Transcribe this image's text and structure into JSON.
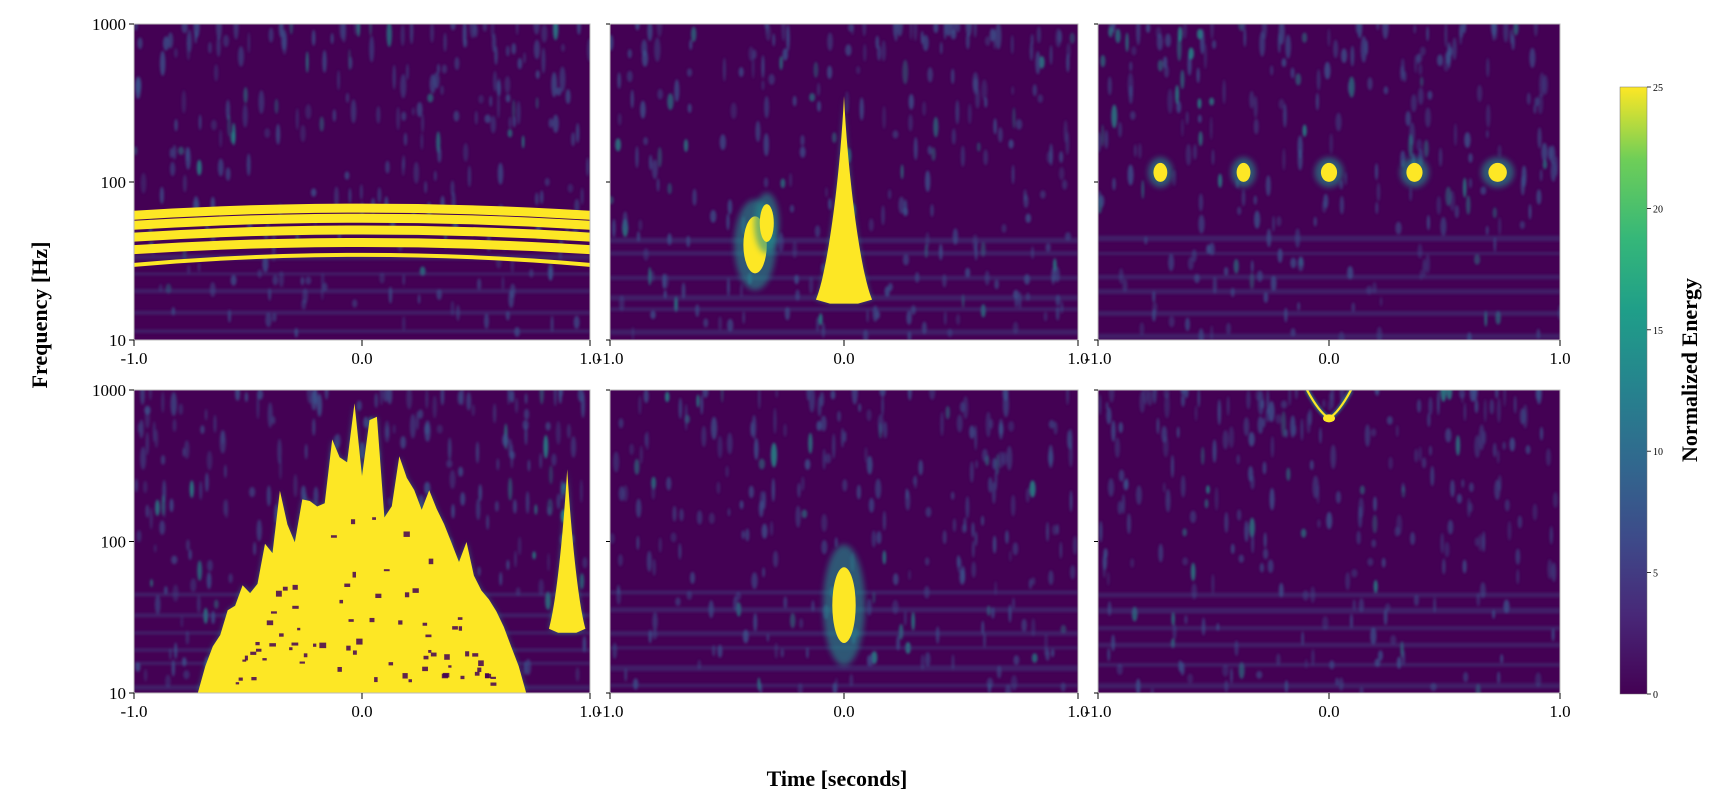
{
  "figure": {
    "xlabel": "Time [seconds]",
    "ylabel": "Frequency [Hz]",
    "colorbar_label": "Normalized Energy"
  },
  "colors": {
    "background": "#440154",
    "noise": "#3b528b",
    "saturated": "#fde725",
    "mid": "#21918c"
  },
  "chart_data": [
    {
      "type": "heatmap",
      "row": 0,
      "col": 0,
      "x_ticks": [
        "-1.0",
        "0.0",
        "1.0"
      ],
      "y_ticks": [
        "1000",
        "100",
        "10"
      ],
      "xlim": [
        -1.0,
        1.0
      ],
      "ylim": [
        10,
        1000
      ],
      "yscale": "log",
      "features": [
        {
          "kind": "bands",
          "freqs": [
            40,
            48,
            57,
            66
          ],
          "curvature": 0.15,
          "intensity": 25
        }
      ]
    },
    {
      "type": "heatmap",
      "row": 0,
      "col": 1,
      "x_ticks": [
        "-1.0",
        "0.0",
        "1.0"
      ],
      "y_ticks": [],
      "xlim": [
        -1.0,
        1.0
      ],
      "ylim": [
        10,
        1000
      ],
      "yscale": "log",
      "features": [
        {
          "kind": "blip",
          "t": 0.0,
          "fmin": 17,
          "fmax": 350,
          "width": 0.12,
          "intensity": 25
        },
        {
          "kind": "blob",
          "t": -0.38,
          "f": 40,
          "w": 0.05,
          "fh": 0.18,
          "intensity": 25
        },
        {
          "kind": "blob",
          "t": -0.33,
          "f": 55,
          "w": 0.03,
          "fh": 0.12,
          "intensity": 25
        }
      ]
    },
    {
      "type": "heatmap",
      "row": 0,
      "col": 2,
      "x_ticks": [
        "-1.0",
        "0.0",
        "1.0"
      ],
      "y_ticks": [],
      "xlim": [
        -1.0,
        1.0
      ],
      "ylim": [
        10,
        1000
      ],
      "yscale": "log",
      "features": [
        {
          "kind": "blob",
          "t": -0.73,
          "f": 115,
          "w": 0.03,
          "fh": 0.06,
          "intensity": 25
        },
        {
          "kind": "blob",
          "t": -0.37,
          "f": 115,
          "w": 0.03,
          "fh": 0.06,
          "intensity": 25
        },
        {
          "kind": "blob",
          "t": 0.0,
          "f": 115,
          "w": 0.035,
          "fh": 0.06,
          "intensity": 25
        },
        {
          "kind": "blob",
          "t": 0.37,
          "f": 115,
          "w": 0.035,
          "fh": 0.06,
          "intensity": 25
        },
        {
          "kind": "blob",
          "t": 0.73,
          "f": 115,
          "w": 0.04,
          "fh": 0.06,
          "intensity": 25
        }
      ]
    },
    {
      "type": "heatmap",
      "row": 1,
      "col": 0,
      "x_ticks": [
        "-1.0",
        "0.0",
        "1.0"
      ],
      "y_ticks": [
        "1000",
        "100",
        "10"
      ],
      "xlim": [
        -1.0,
        1.0
      ],
      "ylim": [
        10,
        1000
      ],
      "yscale": "log",
      "features": [
        {
          "kind": "burst",
          "t": 0.0,
          "width": 0.72,
          "fmin": 10,
          "fmax": 1000,
          "intensity": 25
        },
        {
          "kind": "blip",
          "t": 0.9,
          "fmin": 25,
          "fmax": 300,
          "width": 0.08,
          "intensity": 25
        }
      ]
    },
    {
      "type": "heatmap",
      "row": 1,
      "col": 1,
      "x_ticks": [
        "-1.0",
        "0.0",
        "1.0"
      ],
      "y_ticks": [],
      "xlim": [
        -1.0,
        1.0
      ],
      "ylim": [
        10,
        1000
      ],
      "yscale": "log",
      "features": [
        {
          "kind": "blob",
          "t": 0.0,
          "f": 38,
          "w": 0.05,
          "fh": 0.25,
          "intensity": 25
        }
      ]
    },
    {
      "type": "heatmap",
      "row": 1,
      "col": 2,
      "x_ticks": [
        "-1.0",
        "0.0",
        "1.0"
      ],
      "y_ticks": [],
      "xlim": [
        -1.0,
        1.0
      ],
      "ylim": [
        10,
        1000
      ],
      "yscale": "log",
      "features": [
        {
          "kind": "chirp",
          "t": 0.0,
          "f": 650,
          "intensity": 25
        }
      ]
    }
  ],
  "colorbar": {
    "ticks": [
      "25",
      "20",
      "15",
      "10",
      "5",
      "0"
    ],
    "range": [
      0,
      25
    ],
    "colormap": "viridis"
  }
}
